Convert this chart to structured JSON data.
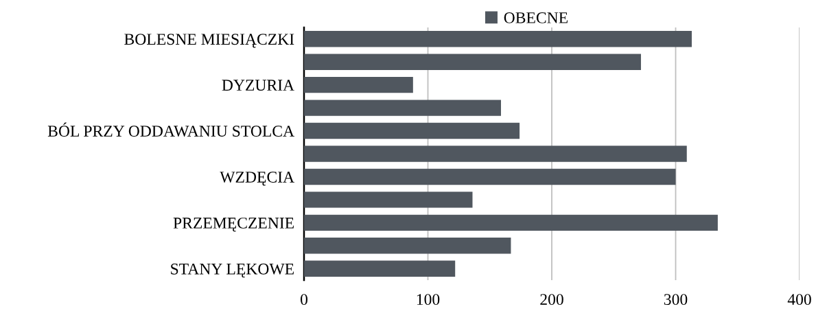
{
  "chart_data": {
    "type": "bar",
    "orientation": "horizontal",
    "categories": [
      "BOLESNE MIESIĄCZKI",
      null,
      "DYZURIA",
      null,
      "BÓL PRZY ODDAWANIU STOLCA",
      null,
      "WZDĘCIA",
      null,
      "PRZEMĘCZENIE",
      null,
      "STANY LĘKOWE"
    ],
    "series": [
      {
        "name": "OBECNE",
        "color": "#50575f",
        "values": [
          313,
          272,
          88,
          159,
          174,
          309,
          300,
          136,
          334,
          167,
          122
        ]
      }
    ],
    "xlim": [
      0,
      400
    ],
    "xticks": [
      0,
      100,
      200,
      300,
      400
    ],
    "grid": "x",
    "legend": "top"
  }
}
